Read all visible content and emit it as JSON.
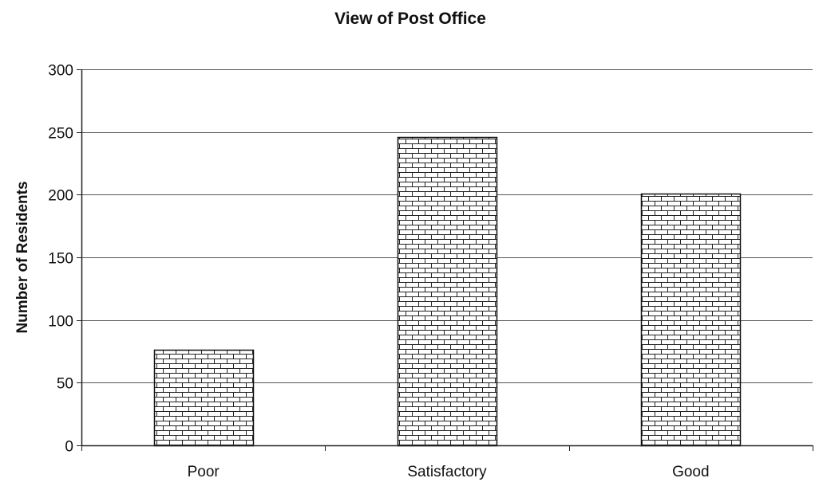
{
  "chart_data": {
    "type": "bar",
    "title": "View of Post Office",
    "xlabel": "",
    "ylabel": "Number of Residents",
    "categories": [
      "Poor",
      "Satisfactory",
      "Good"
    ],
    "values": [
      76,
      246,
      201
    ],
    "ylim": [
      0,
      300
    ],
    "yticks": [
      0,
      50,
      100,
      150,
      200,
      250,
      300
    ],
    "grid": true,
    "legend": "none",
    "bar_fill": "brick-pattern",
    "colors": {
      "bar_stroke": "#111111",
      "grid": "#555555",
      "axis": "#222222"
    }
  }
}
